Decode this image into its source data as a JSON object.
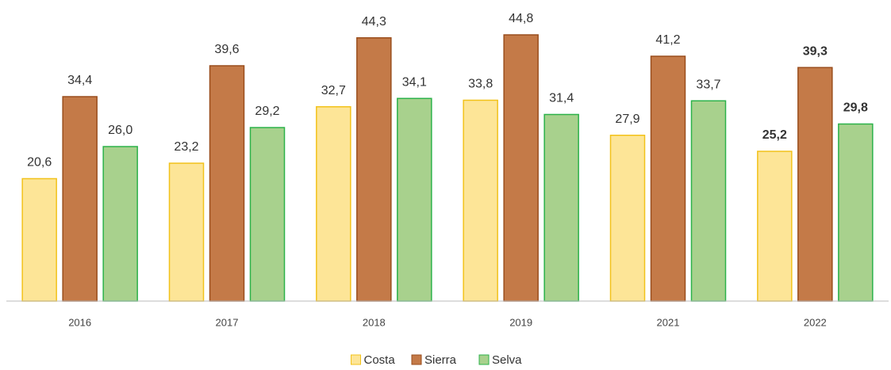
{
  "chart_data": {
    "type": "bar",
    "categories": [
      "2016",
      "2017",
      "2018",
      "2019",
      "2021",
      "2022"
    ],
    "series": [
      {
        "name": "Costa",
        "color": "#fde597",
        "edge_color": "#f2c21b",
        "values": [
          20.6,
          23.2,
          32.7,
          33.8,
          27.9,
          25.2
        ],
        "value_labels": [
          "20,6",
          "23,2",
          "32,7",
          "33,8",
          "27,9",
          "25,2"
        ]
      },
      {
        "name": "Sierra",
        "color": "#c47a48",
        "edge_color": "#9a4e1d",
        "values": [
          34.4,
          39.6,
          44.3,
          44.8,
          41.2,
          39.3
        ],
        "value_labels": [
          "34,4",
          "39,6",
          "44,3",
          "44,8",
          "41,2",
          "39,3"
        ]
      },
      {
        "name": "Selva",
        "color": "#a8d18d",
        "edge_color": "#2cb24a",
        "values": [
          26.0,
          29.2,
          34.1,
          31.4,
          33.7,
          29.8
        ],
        "value_labels": [
          "26,0",
          "29,2",
          "34,1",
          "31,4",
          "33,7",
          "29,8"
        ]
      }
    ],
    "ylim": [
      0,
      50
    ],
    "legend": "bottom"
  }
}
